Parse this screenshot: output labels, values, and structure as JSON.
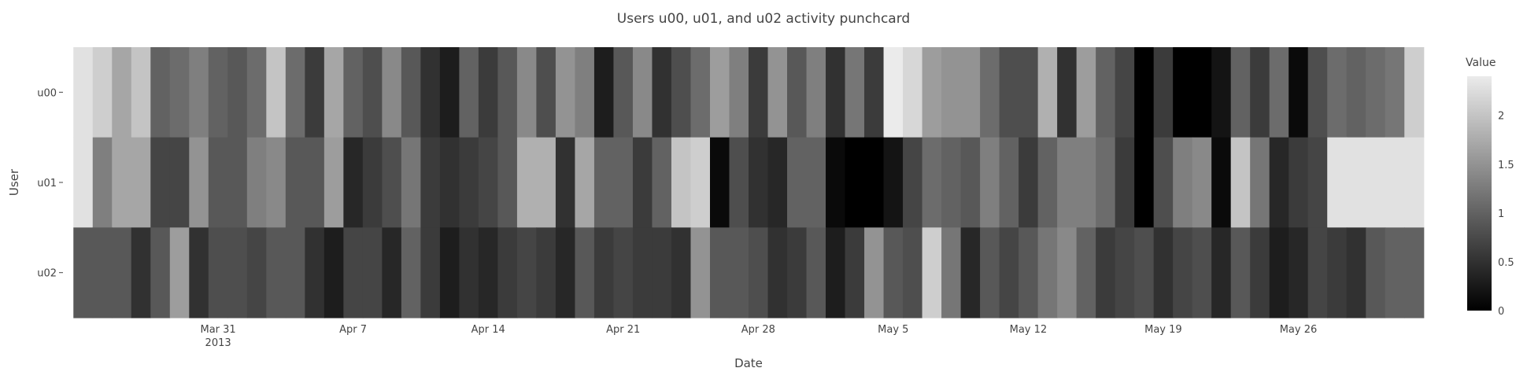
{
  "chart_data": {
    "type": "heatmap",
    "title": "Users u00, u01, and u02 activity punchcard",
    "xlabel": "Date",
    "ylabel": "User",
    "colorbar_title": "Value",
    "colorscale": [
      "#000000",
      "#ebebeb"
    ],
    "zlim": [
      0,
      2.4
    ],
    "colorbar_ticks": [
      "0",
      "0.5",
      "1",
      "1.5",
      "2"
    ],
    "x_range": [
      "2013-03-23",
      "2013-06-02"
    ],
    "x": [
      "2013-03-24",
      "2013-03-25",
      "2013-03-26",
      "2013-03-27",
      "2013-03-28",
      "2013-03-29",
      "2013-03-30",
      "2013-03-31",
      "2013-04-01",
      "2013-04-02",
      "2013-04-03",
      "2013-04-04",
      "2013-04-05",
      "2013-04-06",
      "2013-04-07",
      "2013-04-08",
      "2013-04-09",
      "2013-04-10",
      "2013-04-11",
      "2013-04-12",
      "2013-04-13",
      "2013-04-14",
      "2013-04-15",
      "2013-04-16",
      "2013-04-17",
      "2013-04-18",
      "2013-04-19",
      "2013-04-20",
      "2013-04-21",
      "2013-04-22",
      "2013-04-23",
      "2013-04-24",
      "2013-04-25",
      "2013-04-26",
      "2013-04-27",
      "2013-04-28",
      "2013-04-29",
      "2013-04-30",
      "2013-05-01",
      "2013-05-02",
      "2013-05-03",
      "2013-05-04",
      "2013-05-05",
      "2013-05-06",
      "2013-05-07",
      "2013-05-08",
      "2013-05-09",
      "2013-05-10",
      "2013-05-11",
      "2013-05-12",
      "2013-05-13",
      "2013-05-14",
      "2013-05-15",
      "2013-05-16",
      "2013-05-17",
      "2013-05-18",
      "2013-05-19",
      "2013-05-20",
      "2013-05-21",
      "2013-05-22",
      "2013-05-23",
      "2013-05-24",
      "2013-05-25",
      "2013-05-26",
      "2013-05-27",
      "2013-05-28",
      "2013-05-29",
      "2013-05-30",
      "2013-05-31",
      "2013-06-01"
    ],
    "x_ticks": [
      {
        "date": "2013-03-31",
        "label": "Mar 31",
        "sublabel": "2013"
      },
      {
        "date": "2013-04-07",
        "label": "Apr 7"
      },
      {
        "date": "2013-04-14",
        "label": "Apr 14"
      },
      {
        "date": "2013-04-21",
        "label": "Apr 21"
      },
      {
        "date": "2013-04-28",
        "label": "Apr 28"
      },
      {
        "date": "2013-05-05",
        "label": "May 5"
      },
      {
        "date": "2013-05-12",
        "label": "May 12"
      },
      {
        "date": "2013-05-19",
        "label": "May 19"
      },
      {
        "date": "2013-05-26",
        "label": "May 26"
      }
    ],
    "series": [
      {
        "name": "u00",
        "values": [
          2.3,
          2.1,
          1.7,
          2.0,
          1.0,
          1.1,
          1.3,
          1.0,
          0.9,
          1.1,
          2.0,
          1.1,
          0.6,
          1.7,
          1.0,
          0.8,
          1.4,
          0.9,
          0.5,
          0.3,
          1.0,
          0.6,
          0.9,
          1.4,
          0.8,
          1.5,
          1.3,
          0.3,
          0.9,
          1.4,
          0.5,
          0.8,
          1.1,
          1.6,
          1.3,
          0.6,
          1.5,
          0.9,
          1.3,
          0.5,
          1.2,
          0.6,
          2.4,
          2.2,
          1.6,
          1.5,
          1.5,
          1.1,
          0.8,
          0.8,
          1.8,
          0.5,
          1.6,
          1.0,
          0.7,
          0.0,
          0.6,
          0.0,
          0.0,
          0.2,
          1.0,
          0.6,
          1.1,
          0.1,
          0.8,
          1.1,
          1.0,
          1.1,
          1.2,
          2.1
        ]
      },
      {
        "name": "u01",
        "values": [
          2.3,
          1.3,
          1.7,
          1.7,
          0.7,
          0.7,
          1.5,
          0.9,
          0.9,
          1.3,
          1.4,
          0.9,
          0.9,
          1.6,
          0.4,
          0.6,
          0.8,
          1.2,
          0.6,
          0.5,
          0.6,
          0.7,
          0.9,
          1.8,
          1.8,
          0.5,
          1.7,
          1.0,
          1.0,
          0.6,
          1.0,
          2.0,
          2.1,
          0.1,
          0.8,
          0.5,
          0.4,
          1.0,
          1.0,
          0.1,
          0.0,
          0.0,
          0.2,
          0.7,
          1.1,
          1.0,
          0.9,
          1.3,
          1.0,
          0.6,
          1.0,
          1.3,
          1.3,
          1.1,
          0.6,
          0.0,
          0.8,
          1.3,
          1.4,
          0.1,
          2.0,
          1.2,
          0.4,
          0.6,
          0.7,
          2.3,
          2.3,
          2.3,
          2.3,
          2.3
        ]
      },
      {
        "name": "u02",
        "values": [
          0.9,
          0.9,
          0.9,
          0.5,
          0.9,
          1.6,
          0.5,
          0.8,
          0.8,
          0.7,
          0.9,
          0.9,
          0.5,
          0.3,
          0.7,
          0.7,
          0.4,
          1.0,
          0.6,
          0.3,
          0.5,
          0.4,
          0.6,
          0.7,
          0.6,
          0.4,
          0.9,
          0.6,
          0.7,
          0.6,
          0.6,
          0.5,
          1.5,
          0.9,
          0.9,
          0.8,
          0.5,
          0.6,
          0.9,
          0.3,
          0.6,
          1.5,
          0.9,
          0.8,
          2.1,
          1.2,
          0.4,
          0.9,
          0.7,
          0.9,
          1.2,
          1.4,
          1.0,
          0.6,
          0.7,
          0.8,
          0.5,
          0.7,
          0.8,
          0.4,
          0.9,
          0.6,
          0.3,
          0.4,
          0.7,
          0.6,
          0.5,
          0.9,
          1.0,
          1.0
        ]
      }
    ]
  }
}
